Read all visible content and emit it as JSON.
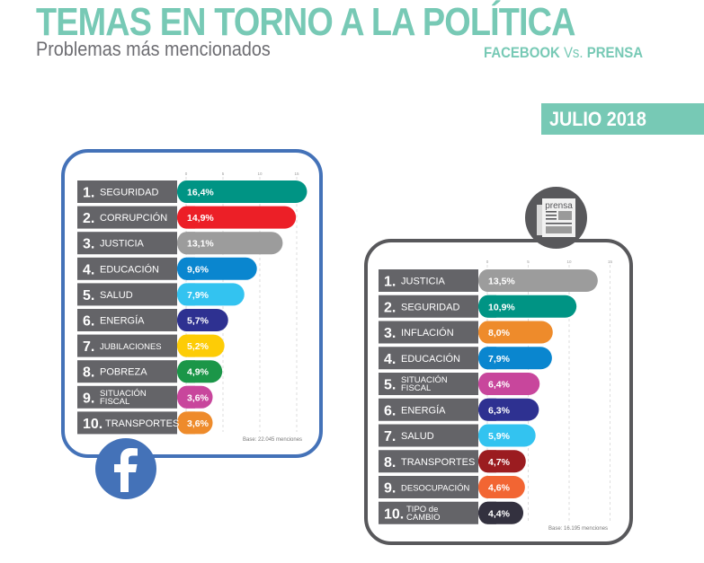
{
  "header": {
    "title": "TEMAS EN TORNO A LA POLÍTICA",
    "subtitle": "Problemas más mencionados",
    "comparison_left": "FACEBOOK",
    "comparison_mid": "Vs.",
    "comparison_right": "PRENSA",
    "period": "JULIO 2018"
  },
  "colors": {
    "accent": "#77c9b5",
    "facebook_frame": "#4472b8",
    "press_frame": "#58585b",
    "label_bg": "#646468"
  },
  "chart_data": [
    {
      "type": "bar",
      "orientation": "horizontal",
      "title": "Facebook",
      "icon": "facebook-icon",
      "xlim": [
        0,
        15
      ],
      "ticks": [
        "0",
        "5",
        "10",
        "15"
      ],
      "grid": true,
      "note": "Base: 22.045 menciones",
      "categories": [
        {
          "rank": "1.",
          "label": "SEGURIDAD",
          "value": 16.4,
          "value_label": "16,4%",
          "color": "#009484"
        },
        {
          "rank": "2.",
          "label": "CORRUPCIÓN",
          "value": 14.9,
          "value_label": "14,9%",
          "color": "#ec1f27"
        },
        {
          "rank": "3.",
          "label": "JUSTICIA",
          "value": 13.1,
          "value_label": "13,1%",
          "color": "#9c9c9c"
        },
        {
          "rank": "4.",
          "label": "EDUCACIÓN",
          "value": 9.6,
          "value_label": "9,6%",
          "color": "#0a86cf"
        },
        {
          "rank": "5.",
          "label": "SALUD",
          "value": 7.9,
          "value_label": "7,9%",
          "color": "#33c3f0"
        },
        {
          "rank": "6.",
          "label": "ENERGÍA",
          "value": 5.7,
          "value_label": "5,7%",
          "color": "#2e3191"
        },
        {
          "rank": "7.",
          "label": "JUBILACIONES",
          "value": 5.2,
          "value_label": "5,2%",
          "color": "#fdcc06"
        },
        {
          "rank": "8.",
          "label": "POBREZA",
          "value": 4.9,
          "value_label": "4,9%",
          "color": "#1b9648"
        },
        {
          "rank": "9.",
          "label": "SITUACIÓN FISCAL",
          "value": 3.6,
          "value_label": "3,6%",
          "color": "#c8469c"
        },
        {
          "rank": "10.",
          "label": "TRANSPORTES",
          "value": 3.6,
          "value_label": "3,6%",
          "color": "#ee8b2b"
        }
      ]
    },
    {
      "type": "bar",
      "orientation": "horizontal",
      "title": "Prensa",
      "icon": "newspaper-icon",
      "icon_text": "prensa",
      "xlim": [
        0,
        15
      ],
      "ticks": [
        "0",
        "5",
        "10",
        "15"
      ],
      "grid": true,
      "note": "Base: 16.195 menciones",
      "categories": [
        {
          "rank": "1.",
          "label": "JUSTICIA",
          "value": 13.5,
          "value_label": "13,5%",
          "color": "#9c9c9c"
        },
        {
          "rank": "2.",
          "label": "SEGURIDAD",
          "value": 10.9,
          "value_label": "10,9%",
          "color": "#009484"
        },
        {
          "rank": "3.",
          "label": "INFLACIÓN",
          "value": 8.0,
          "value_label": "8,0%",
          "color": "#ee8b2b"
        },
        {
          "rank": "4.",
          "label": "EDUCACIÓN",
          "value": 7.9,
          "value_label": "7,9%",
          "color": "#0a86cf"
        },
        {
          "rank": "5.",
          "label": "SITUACIÓN FISCAL",
          "value": 6.4,
          "value_label": "6,4%",
          "color": "#c8469c"
        },
        {
          "rank": "6.",
          "label": "ENERGÍA",
          "value": 6.3,
          "value_label": "6,3%",
          "color": "#2e3191"
        },
        {
          "rank": "7.",
          "label": "SALUD",
          "value": 5.9,
          "value_label": "5,9%",
          "color": "#33c3f0"
        },
        {
          "rank": "8.",
          "label": "TRANSPORTES",
          "value": 4.7,
          "value_label": "4,7%",
          "color": "#9b1c20"
        },
        {
          "rank": "9.",
          "label": "DESOCUPACIÓN",
          "value": 4.6,
          "value_label": "4,6%",
          "color": "#f26533"
        },
        {
          "rank": "10.",
          "label": "TIPO de CAMBIO",
          "value": 4.4,
          "value_label": "4,4%",
          "color": "#33313f"
        }
      ]
    }
  ]
}
